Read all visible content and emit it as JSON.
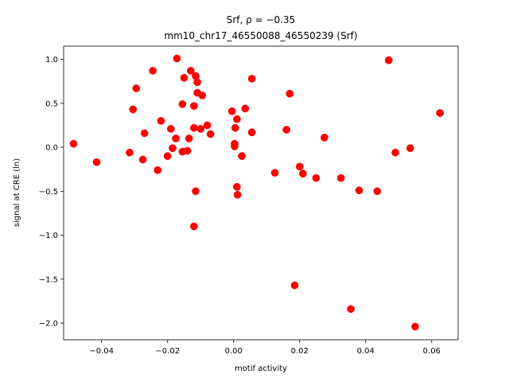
{
  "chart_data": {
    "type": "scatter",
    "title_line1": "Srf, ρ = −0.35",
    "title_line2": "mm10_chr17_46550088_46550239 (Srf)",
    "xlabel": "motif activity",
    "ylabel": "signal at CRE (ln)",
    "xlim": [
      -0.0515,
      0.068
    ],
    "ylim": [
      -2.19,
      1.15
    ],
    "xticks": [
      -0.04,
      -0.02,
      0.0,
      0.02,
      0.04,
      0.06
    ],
    "xtick_labels": [
      "−0.04",
      "−0.02",
      "0.00",
      "0.02",
      "0.04",
      "0.06"
    ],
    "yticks": [
      -2.0,
      -1.5,
      -1.0,
      -0.5,
      0.0,
      0.5,
      1.0
    ],
    "ytick_labels": [
      "−2.0",
      "−1.5",
      "−1.0",
      "−0.5",
      "0.0",
      "0.5",
      "1.0"
    ],
    "grid": false,
    "marker_color": "#ff0000",
    "points": [
      [
        -0.0485,
        0.04
      ],
      [
        -0.0415,
        -0.17
      ],
      [
        -0.0315,
        -0.06
      ],
      [
        -0.0305,
        0.43
      ],
      [
        -0.0295,
        0.67
      ],
      [
        -0.0275,
        -0.14
      ],
      [
        -0.027,
        0.16
      ],
      [
        -0.0245,
        0.87
      ],
      [
        -0.023,
        -0.26
      ],
      [
        -0.022,
        0.3
      ],
      [
        -0.02,
        -0.1
      ],
      [
        -0.019,
        0.21
      ],
      [
        -0.0185,
        -0.01
      ],
      [
        -0.0175,
        0.1
      ],
      [
        -0.0172,
        1.01
      ],
      [
        -0.0155,
        0.49
      ],
      [
        -0.0155,
        -0.05
      ],
      [
        -0.015,
        0.79
      ],
      [
        -0.014,
        -0.04
      ],
      [
        -0.0135,
        0.1
      ],
      [
        -0.013,
        0.87
      ],
      [
        -0.012,
        0.47
      ],
      [
        -0.012,
        0.22
      ],
      [
        -0.012,
        -0.9
      ],
      [
        -0.0115,
        0.81
      ],
      [
        -0.0115,
        -0.5
      ],
      [
        -0.011,
        0.74
      ],
      [
        -0.011,
        0.62
      ],
      [
        -0.01,
        0.21
      ],
      [
        -0.0095,
        0.59
      ],
      [
        -0.008,
        0.25
      ],
      [
        -0.007,
        0.15
      ],
      [
        -0.0005,
        0.41
      ],
      [
        0.0003,
        0.04
      ],
      [
        0.0003,
        0.01
      ],
      [
        0.0005,
        0.22
      ],
      [
        0.001,
        0.32
      ],
      [
        0.001,
        -0.45
      ],
      [
        0.0012,
        -0.54
      ],
      [
        0.0025,
        -0.1
      ],
      [
        0.0035,
        0.44
      ],
      [
        0.0055,
        0.78
      ],
      [
        0.0055,
        0.17
      ],
      [
        0.0125,
        -0.29
      ],
      [
        0.016,
        0.2
      ],
      [
        0.017,
        0.61
      ],
      [
        0.0185,
        -1.57
      ],
      [
        0.02,
        -0.22
      ],
      [
        0.021,
        -0.3
      ],
      [
        0.025,
        -0.35
      ],
      [
        0.0275,
        0.11
      ],
      [
        0.0325,
        -0.35
      ],
      [
        0.0355,
        -1.84
      ],
      [
        0.038,
        -0.49
      ],
      [
        0.0435,
        -0.5
      ],
      [
        0.047,
        0.99
      ],
      [
        0.049,
        -0.06
      ],
      [
        0.0535,
        -0.01
      ],
      [
        0.055,
        -2.04
      ],
      [
        0.0625,
        0.39
      ]
    ]
  }
}
